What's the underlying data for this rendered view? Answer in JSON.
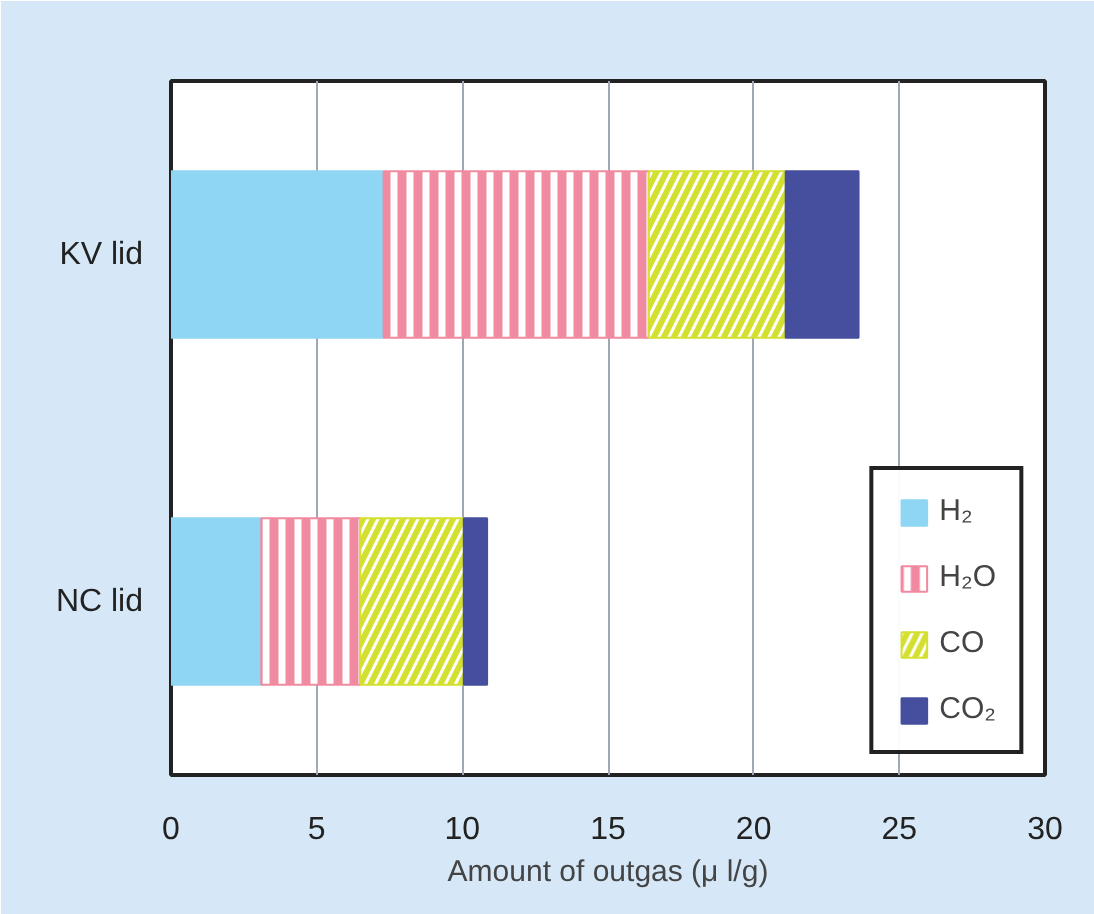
{
  "chart_data": {
    "type": "bar",
    "orientation": "horizontal",
    "stacked": true,
    "xlabel": "Amount of outgas (μ l/g)",
    "categories": [
      "KV lid",
      "NC lid"
    ],
    "series": [
      {
        "name": "H₂",
        "color": "#8fd6f4",
        "values": [
          7.3,
          3.1
        ]
      },
      {
        "name": "H₂O",
        "color": "#f08aa0",
        "values": [
          9.1,
          3.4
        ]
      },
      {
        "name": "CO",
        "color": "#d4e030",
        "values": [
          4.7,
          3.55
        ]
      },
      {
        "name": "CO₂",
        "color": "#454f9e",
        "values": [
          2.5,
          0.8
        ]
      }
    ],
    "xlim": [
      0,
      30
    ],
    "xticks": [
      0,
      5,
      10,
      15,
      20,
      25,
      30
    ],
    "grid": "x",
    "legend": "right"
  }
}
